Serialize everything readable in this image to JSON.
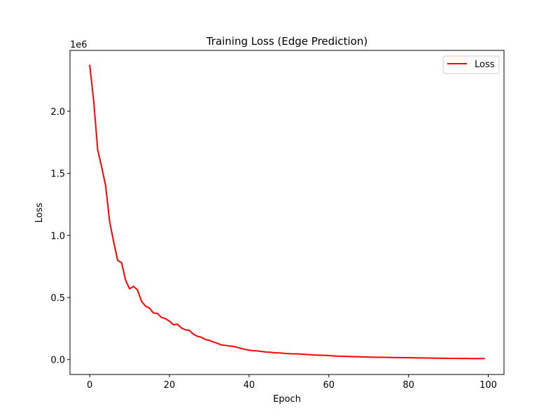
{
  "chart_data": {
    "type": "line",
    "title": "Training Loss (Edge Prediction)",
    "xlabel": "Epoch",
    "ylabel": "Loss",
    "y_offset_label": "1e6",
    "y_scale_factor": 1000000,
    "xlim": [
      -4.95,
      103.95
    ],
    "ylim": [
      -120000,
      2490000
    ],
    "x_ticks": [
      0,
      20,
      40,
      60,
      80,
      100
    ],
    "x_tick_labels": [
      "0",
      "20",
      "40",
      "60",
      "80",
      "100"
    ],
    "y_ticks": [
      0,
      0.5,
      1.0,
      1.5,
      2.0
    ],
    "y_tick_labels": [
      "0.0",
      "0.5",
      "1.0",
      "1.5",
      "2.0"
    ],
    "grid": false,
    "legend_position": "upper right",
    "series": [
      {
        "name": "Loss",
        "color": "#ff0000",
        "x": [
          0,
          1,
          2,
          3,
          4,
          5,
          6,
          7,
          8,
          9,
          10,
          11,
          12,
          13,
          14,
          15,
          16,
          17,
          18,
          19,
          20,
          21,
          22,
          23,
          24,
          25,
          26,
          27,
          28,
          29,
          30,
          31,
          32,
          33,
          34,
          35,
          36,
          37,
          38,
          39,
          40,
          41,
          42,
          43,
          44,
          45,
          46,
          47,
          48,
          49,
          50,
          51,
          52,
          53,
          54,
          55,
          56,
          57,
          58,
          59,
          60,
          61,
          62,
          63,
          64,
          65,
          66,
          67,
          68,
          69,
          70,
          71,
          72,
          73,
          74,
          75,
          76,
          77,
          78,
          79,
          80,
          81,
          82,
          83,
          84,
          85,
          86,
          87,
          88,
          89,
          90,
          91,
          92,
          93,
          94,
          95,
          96,
          97,
          98,
          99
        ],
        "y": [
          2370000,
          2080000,
          1690000,
          1550000,
          1400000,
          1110000,
          950000,
          800000,
          780000,
          640000,
          570000,
          590000,
          560000,
          470000,
          430000,
          415000,
          375000,
          372000,
          340000,
          330000,
          310000,
          280000,
          285000,
          255000,
          240000,
          235000,
          205000,
          188000,
          180000,
          162000,
          155000,
          142000,
          132000,
          118000,
          115000,
          110000,
          107000,
          98000,
          90000,
          82000,
          76000,
          72000,
          70000,
          66000,
          62000,
          60000,
          56000,
          54000,
          53000,
          50000,
          48000,
          46000,
          46000,
          44000,
          42000,
          40000,
          38000,
          36000,
          35000,
          34000,
          32000,
          30000,
          28000,
          27000,
          26000,
          25000,
          24000,
          23000,
          22000,
          21000,
          20000,
          19500,
          19000,
          18500,
          18000,
          17500,
          17000,
          16500,
          16000,
          15500,
          15000,
          14500,
          14000,
          13500,
          13000,
          12500,
          12000,
          11500,
          11000,
          10500,
          10000,
          9800,
          9500,
          9200,
          9000,
          8800,
          8600,
          8400,
          8200,
          8000
        ]
      }
    ]
  }
}
